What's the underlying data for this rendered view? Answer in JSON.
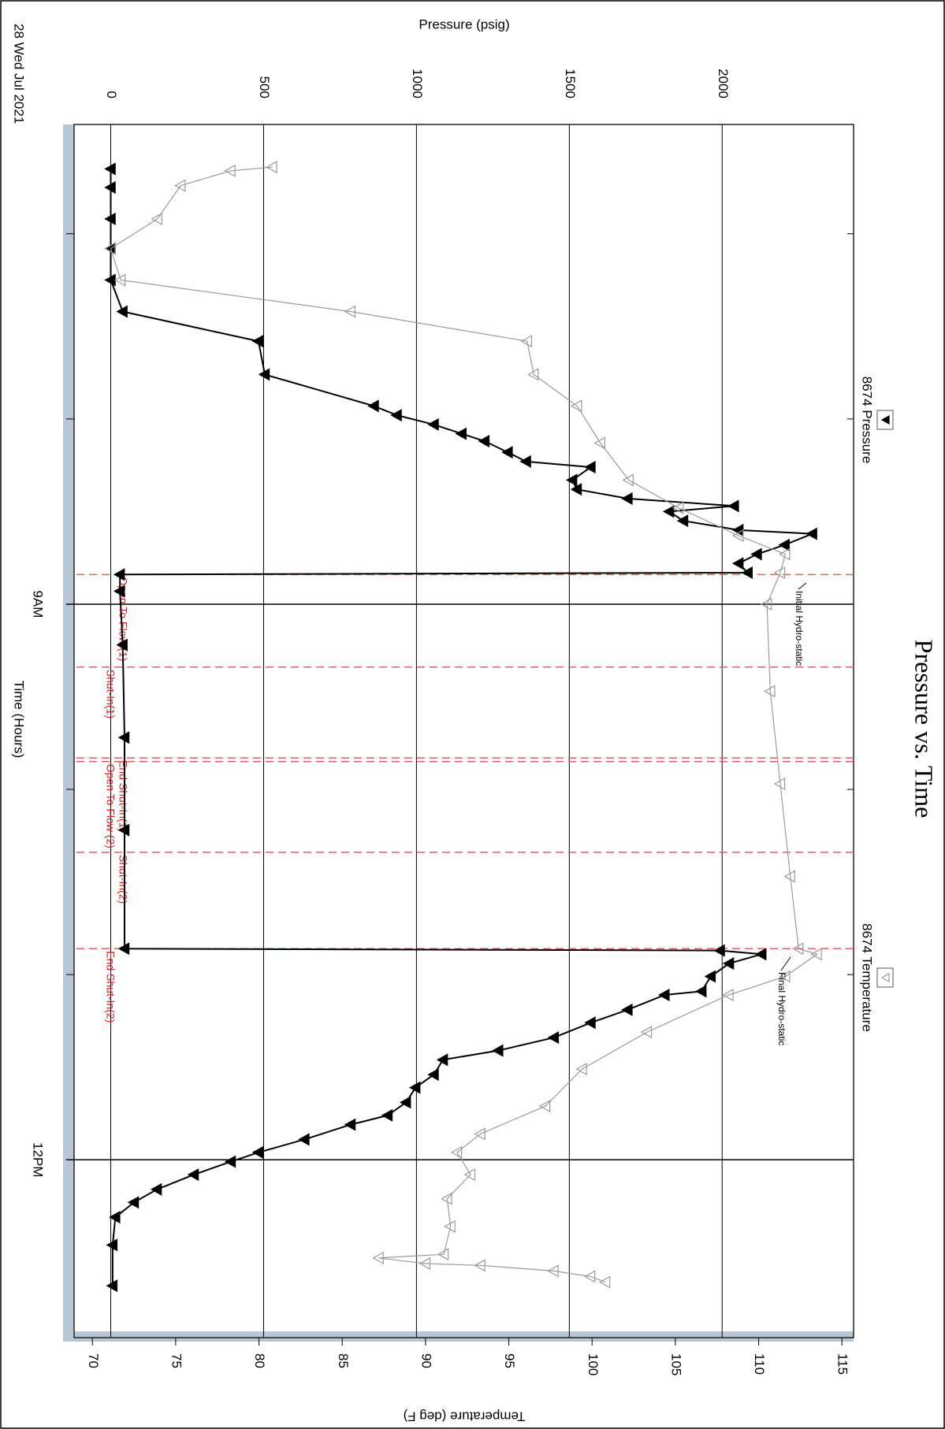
{
  "chart_data": {
    "type": "line",
    "title": "Pressure vs. Time",
    "x_label": "Time (Hours)",
    "y_label": "Pressure (psig)",
    "y2_label": "Temperature (deg F)",
    "date_label": "28 Wed Jul 2021",
    "xlim": [
      6.41,
      12.96
    ],
    "xticks": [
      {
        "value": 9,
        "label": "9AM"
      },
      {
        "value": 12,
        "label": "12PM"
      }
    ],
    "x_minor_ticks": [
      7,
      8,
      10,
      11
    ],
    "ylim": [
      -120,
      2430
    ],
    "yticks": [
      0,
      500,
      1000,
      1500,
      2000
    ],
    "y2lim": [
      68.9,
      115.7
    ],
    "y2ticks": [
      70,
      75,
      80,
      85,
      90,
      95,
      100,
      105,
      110,
      115
    ],
    "grid": true,
    "series": [
      {
        "name": "8674 Pressure",
        "color": "#000000",
        "marker": "filled-triangle-down",
        "x": [
          6.65,
          6.75,
          6.92,
          7.08,
          7.25,
          7.42,
          7.58,
          7.76,
          7.93,
          7.98,
          8.03,
          8.08,
          8.12,
          8.18,
          8.23,
          8.26,
          8.33,
          8.38,
          8.43,
          8.47,
          8.5,
          8.55,
          8.6,
          8.62,
          8.68,
          8.73,
          8.78,
          8.83,
          8.84,
          8.93,
          9.22,
          9.72,
          10.22,
          10.86,
          10.87,
          10.89,
          10.94,
          11.01,
          11.09,
          11.11,
          11.19,
          11.26,
          11.34,
          11.41,
          11.46,
          11.54,
          11.61,
          11.69,
          11.76,
          11.81,
          11.89,
          11.96,
          12.01,
          12.08,
          12.16,
          12.23,
          12.31,
          12.46,
          12.68
        ],
        "values": [
          0,
          0,
          0,
          0,
          0,
          39,
          483,
          504,
          861,
          936,
          1057,
          1148,
          1223,
          1299,
          1359,
          1570,
          1510,
          1525,
          1691,
          2039,
          1827,
          1873,
          2054,
          2295,
          2205,
          2114,
          2054,
          2084,
          30,
          30,
          39,
          45,
          45,
          45,
          1993,
          2129,
          2023,
          1963,
          1933,
          1812,
          1691,
          1570,
          1450,
          1268,
          1087,
          1057,
          997,
          966,
          906,
          785,
          634,
          483,
          393,
          272,
          151,
          76,
          15,
          6,
          6
        ]
      },
      {
        "name": "8674 Temperature",
        "color": "#9a9a9a",
        "marker": "open-triangle-down",
        "axis": "y2",
        "x": [
          6.64,
          6.66,
          6.74,
          6.92,
          7.08,
          7.25,
          7.42,
          7.58,
          7.76,
          7.93,
          8.13,
          8.33,
          8.48,
          8.63,
          8.73,
          8.83,
          9.0,
          9.47,
          9.97,
          10.47,
          10.86,
          10.89,
          11.01,
          11.11,
          11.31,
          11.51,
          11.71,
          11.86,
          11.96,
          12.08,
          12.21,
          12.36,
          12.51,
          12.53,
          12.56,
          12.57,
          12.6,
          12.63,
          12.66
        ],
        "values": [
          80.8,
          78.3,
          75.3,
          73.9,
          71.1,
          71.7,
          85.5,
          96.1,
          96.5,
          99.1,
          100.5,
          102.2,
          105.2,
          108.8,
          111.6,
          111.3,
          110.5,
          110.7,
          111.3,
          111.9,
          112.4,
          113.5,
          111.6,
          108.2,
          103.3,
          99.4,
          97.2,
          93.3,
          91.9,
          92.7,
          91.3,
          91.5,
          91.1,
          87.2,
          90.0,
          93.3,
          97.7,
          99.9,
          100.8
        ]
      }
    ],
    "events": [
      {
        "label": "Open To Flow (1)",
        "x": 8.84
      },
      {
        "label": "Shut-In(1)",
        "x": 9.34
      },
      {
        "label": "End Shut-In(1)",
        "x": 9.83
      },
      {
        "label": "Open To Flow (2)",
        "x": 9.85
      },
      {
        "label": "Shut-In(2)",
        "x": 10.34
      },
      {
        "label": "End Shut-In(2)",
        "x": 10.86
      }
    ],
    "annotations": [
      {
        "text": "Initial Hydro-static"
      },
      {
        "text": "Final Hydro-static"
      }
    ]
  }
}
